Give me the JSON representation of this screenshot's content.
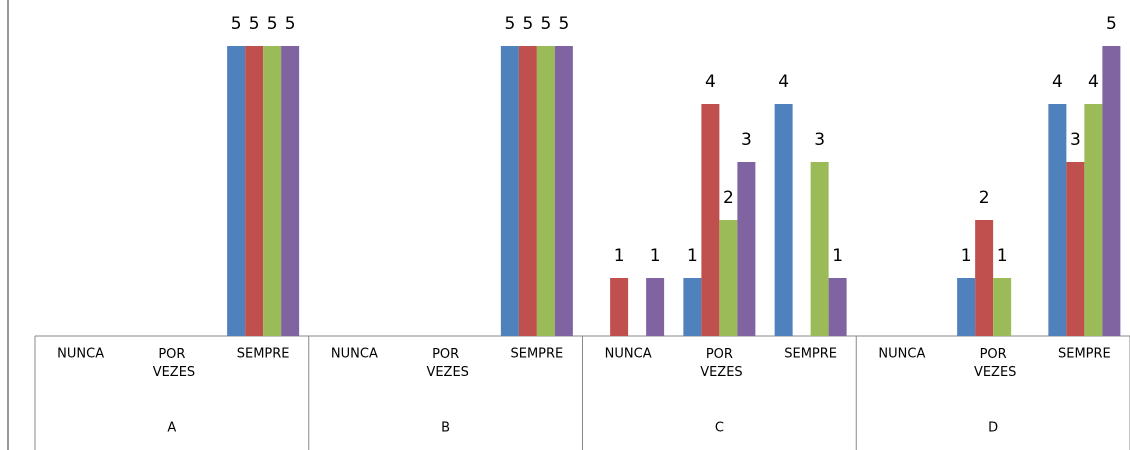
{
  "chart_data": {
    "type": "bar",
    "groups": [
      "A",
      "B",
      "C",
      "D"
    ],
    "categories": [
      "NUNCA",
      "POR VEZES",
      "SEMPRE",
      "NUNCA",
      "POR VEZES",
      "SEMPRE",
      "NUNCA",
      "POR VEZES",
      "SEMPRE",
      "NUNCA",
      "POR VEZES",
      "SEMPRE"
    ],
    "series": [
      {
        "color": "#4f81bd",
        "values": [
          null,
          null,
          5,
          null,
          null,
          5,
          null,
          1,
          4,
          null,
          1,
          4
        ]
      },
      {
        "color": "#c0504d",
        "values": [
          null,
          null,
          5,
          null,
          null,
          5,
          1,
          4,
          null,
          null,
          2,
          3
        ]
      },
      {
        "color": "#9bbb59",
        "values": [
          null,
          null,
          5,
          null,
          null,
          5,
          null,
          2,
          3,
          null,
          1,
          4
        ]
      },
      {
        "color": "#8064a2",
        "values": [
          null,
          null,
          5,
          null,
          null,
          5,
          1,
          3,
          1,
          null,
          null,
          5
        ]
      }
    ],
    "ylim": [
      0,
      5
    ]
  }
}
